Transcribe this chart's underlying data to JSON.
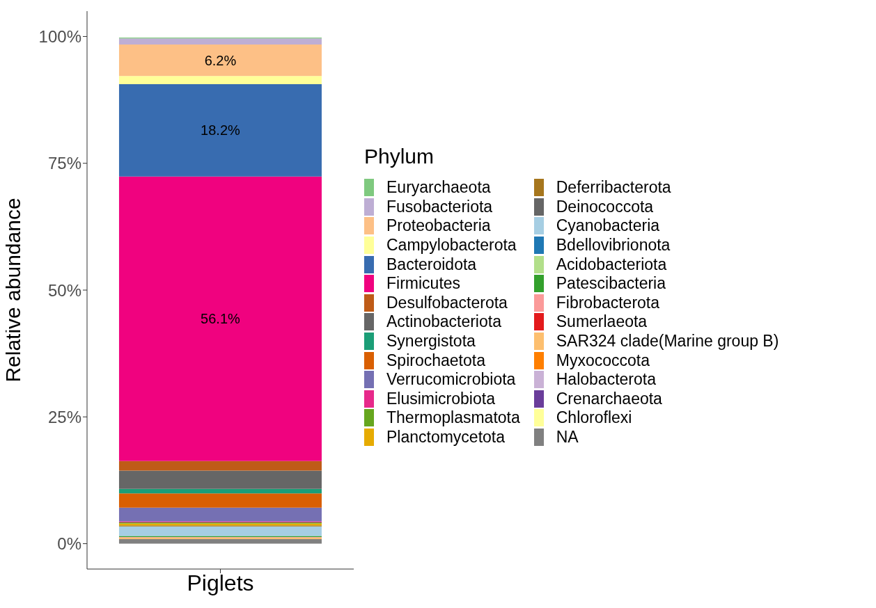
{
  "chart_data": {
    "type": "bar",
    "stacked": true,
    "ylabel": "Relative abundance",
    "legend_title": "Phylum",
    "legend": "right",
    "grid": false,
    "categories": [
      "Piglets"
    ],
    "ylim": [
      -5,
      105
    ],
    "yticks": [
      {
        "value": 0,
        "label": "0%"
      },
      {
        "value": 25,
        "label": "25%"
      },
      {
        "value": 50,
        "label": "50%"
      },
      {
        "value": 75,
        "label": "75%"
      },
      {
        "value": 100,
        "label": "100%"
      }
    ],
    "series": [
      {
        "name": "NA",
        "color": "#808080",
        "values": [
          0.9
        ]
      },
      {
        "name": "Chloroflexi",
        "color": "#ffff99",
        "values": [
          null
        ]
      },
      {
        "name": "Crenarchaeota",
        "color": "#6a3d9a",
        "values": [
          null
        ]
      },
      {
        "name": "Halobacterota",
        "color": "#cab2d6",
        "values": [
          null
        ]
      },
      {
        "name": "Myxococcota",
        "color": "#ff7f00",
        "values": [
          null
        ]
      },
      {
        "name": "SAR324 clade(Marine group B)",
        "color": "#fdbf6f",
        "values": [
          0.3
        ]
      },
      {
        "name": "Sumerlaeota",
        "color": "#e31a1c",
        "values": [
          null
        ]
      },
      {
        "name": "Fibrobacterota",
        "color": "#fb9a99",
        "values": [
          0.1
        ]
      },
      {
        "name": "Patescibacteria",
        "color": "#33a02c",
        "values": [
          0.2
        ]
      },
      {
        "name": "Acidobacteriota",
        "color": "#b2df8a",
        "values": [
          null
        ]
      },
      {
        "name": "Bdellovibrionota",
        "color": "#1f78b4",
        "values": [
          null
        ]
      },
      {
        "name": "Cyanobacteria",
        "color": "#a6cee3",
        "values": [
          1.9
        ]
      },
      {
        "name": "Deinococcota",
        "color": "#666666",
        "values": [
          null
        ]
      },
      {
        "name": "Deferribacterota",
        "color": "#a6761d",
        "values": [
          0.2
        ]
      },
      {
        "name": "Planctomycetota",
        "color": "#e6ab02",
        "values": [
          0.4
        ]
      },
      {
        "name": "Thermoplasmatota",
        "color": "#66a61e",
        "values": [
          0.2
        ]
      },
      {
        "name": "Elusimicrobiota",
        "color": "#e7298a",
        "values": [
          0.2
        ]
      },
      {
        "name": "Verrucomicrobiota",
        "color": "#7570b3",
        "values": [
          2.7
        ]
      },
      {
        "name": "Spirochaetota",
        "color": "#d95f02",
        "values": [
          2.8
        ]
      },
      {
        "name": "Synergistota",
        "color": "#1b9e77",
        "values": [
          0.9
        ]
      },
      {
        "name": "Actinobacteriota",
        "color": "#666666",
        "values": [
          3.6
        ]
      },
      {
        "name": "Desulfobacterota",
        "color": "#bf5b17",
        "values": [
          1.9
        ]
      },
      {
        "name": "Firmicutes",
        "color": "#f0027f",
        "values": [
          56.1
        ],
        "value_labels": [
          "56.1%"
        ]
      },
      {
        "name": "Bacteroidota",
        "color": "#386cb0",
        "values": [
          18.2
        ],
        "value_labels": [
          "18.2%"
        ]
      },
      {
        "name": "Campylobacterota",
        "color": "#ffff99",
        "values": [
          1.6
        ]
      },
      {
        "name": "Proteobacteria",
        "color": "#fdc086",
        "values": [
          6.2
        ],
        "value_labels": [
          "6.2%"
        ]
      },
      {
        "name": "Fusobacteriota",
        "color": "#beaed4",
        "values": [
          1.2
        ]
      },
      {
        "name": "Euryarchaeota",
        "color": "#7fc97f",
        "values": [
          0.2
        ]
      }
    ]
  }
}
